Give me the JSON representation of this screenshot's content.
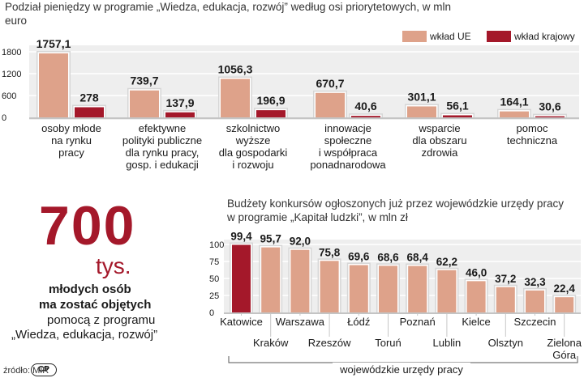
{
  "chart_data": [
    {
      "type": "bar",
      "title": "Podział pieniędzy w programie „Wiedza, edukacja, rozwój” według osi priorytetowych, w mln euro",
      "categories": [
        [
          "osoby młode",
          "na rynku",
          "pracy"
        ],
        [
          "efektywne",
          "polityki publiczne",
          "dla rynku pracy,",
          "gosp. i edukacji"
        ],
        [
          "szkolnictwo",
          "wyższe",
          "dla gospodarki",
          "i rozwoju"
        ],
        [
          "innowacje",
          "społeczne",
          "i współpraca",
          "ponadnarodowa"
        ],
        [
          "wsparcie",
          "dla obszaru",
          "zdrowia"
        ],
        [
          "pomoc",
          "techniczna"
        ]
      ],
      "series": [
        {
          "name": "wkład UE",
          "color": "#dea28a",
          "values": [
            1757.1,
            739.7,
            1056.3,
            670.7,
            301.1,
            164.1
          ],
          "labels": [
            "1757,1",
            "739,7",
            "1056,3",
            "670,7",
            "301,1",
            "164,1"
          ]
        },
        {
          "name": "wkład krajowy",
          "color": "#a4182a",
          "values": [
            278,
            137.9,
            196.9,
            40.6,
            56.1,
            30.6
          ],
          "labels": [
            "278",
            "137,9",
            "196,9",
            "40,6",
            "56,1",
            "30,6"
          ]
        }
      ],
      "yticks": [
        "1800",
        "1200",
        "600",
        "0"
      ],
      "ytick_values": [
        1800,
        1200,
        600,
        0
      ],
      "ylim": [
        0,
        1800
      ],
      "legend_position": "top-right"
    },
    {
      "type": "bar",
      "title": "Budżety konkursów ogłoszonych już przez wojewódzkie urzędy pracy w programie „Kapitał ludzki”, w mln zł",
      "categories": [
        [
          "Katowice"
        ],
        [
          "Kraków"
        ],
        [
          "Warszawa"
        ],
        [
          "Rzeszów"
        ],
        [
          "Łódź"
        ],
        [
          "Toruń"
        ],
        [
          "Poznań"
        ],
        [
          "Lublin"
        ],
        [
          "Kielce"
        ],
        [
          "Olsztyn"
        ],
        [
          "Szczecin"
        ],
        [
          "Zielona",
          "Góra"
        ]
      ],
      "values": [
        99.4,
        95.7,
        92.0,
        75.8,
        69.6,
        68.6,
        68.4,
        62.2,
        46.0,
        37.2,
        32.3,
        22.4
      ],
      "labels": [
        "99,4",
        "95,7",
        "92,0",
        "75,8",
        "69,6",
        "68,6",
        "68,4",
        "62,2",
        "46,0",
        "37,2",
        "32,3",
        "22,4"
      ],
      "highlight_color": "#a4182a",
      "bar_color": "#dea28a",
      "yticks": [
        "100",
        "75",
        "50",
        "25",
        "0"
      ],
      "ytick_values": [
        100,
        75,
        50,
        25,
        0
      ],
      "ylim": [
        0,
        100
      ],
      "xlabel": "wojewódzkie urzędy pracy"
    }
  ],
  "callout": {
    "number": "700",
    "unit": "tys.",
    "line1": "młodych osób",
    "line2": "ma zostać objętych",
    "line3": "pomocą z programu",
    "line4": "„Wiedza, edukacja, rozwój”"
  },
  "footer": {
    "source": "źródło: MIR",
    "logo_text": "CP"
  },
  "colors": {
    "eu": "#dea28a",
    "national": "#a4182a",
    "grid_bg": "#eeeeee"
  }
}
